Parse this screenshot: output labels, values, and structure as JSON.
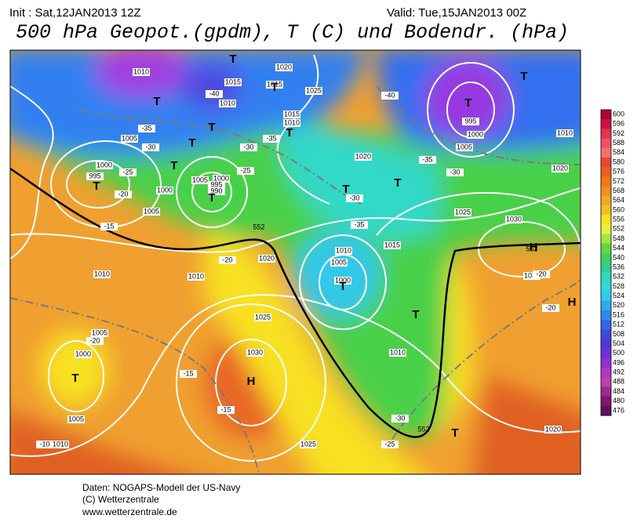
{
  "header": {
    "init": "Init : Sat,12JAN2013 12Z",
    "valid": "Valid: Tue,15JAN2013 00Z",
    "title": "500 hPa Geopot.(gpdm), T (C) und Bodendr. (hPa)"
  },
  "legend": {
    "levels": [
      600,
      596,
      592,
      588,
      584,
      580,
      576,
      572,
      568,
      564,
      560,
      556,
      552,
      548,
      544,
      540,
      536,
      532,
      528,
      524,
      520,
      516,
      512,
      508,
      504,
      500,
      496,
      492,
      488,
      484,
      480,
      476
    ],
    "colors": [
      "#b00030",
      "#d01040",
      "#e83050",
      "#f05060",
      "#f07070",
      "#e84830",
      "#e86020",
      "#f07818",
      "#f09020",
      "#f0a828",
      "#f0c020",
      "#f8e020",
      "#e8f040",
      "#a0e840",
      "#60d840",
      "#40d060",
      "#30d090",
      "#30d8b8",
      "#30d8d8",
      "#30c8f0",
      "#30a8f0",
      "#3088f0",
      "#3068e8",
      "#4048e0",
      "#5038d8",
      "#7030d8",
      "#9030d0",
      "#b038c8",
      "#c040b0",
      "#a02890",
      "#801870",
      "#601060"
    ]
  },
  "map": {
    "pressure_labels": [
      "1010",
      "1015",
      "1010",
      "1015",
      "1020",
      "1025",
      "1015",
      "1010",
      "1005",
      "1000",
      "995",
      "1000",
      "1005",
      "1005",
      "1000",
      "995",
      "990",
      "1020",
      "1025",
      "1030",
      "1015",
      "1010",
      "1005",
      "1000",
      "1010",
      "1010",
      "1020",
      "1025",
      "1030",
      "1005",
      "1000",
      "1005",
      "1010",
      "1025",
      "1010",
      "1020",
      "1030",
      "1010",
      "1020",
      "995",
      "1000",
      "1005"
    ],
    "temperature_labels": [
      "-40",
      "-40",
      "-35",
      "-30",
      "-25",
      "-20",
      "-15",
      "-30",
      "-25",
      "-35",
      "-30",
      "-35",
      "-20",
      "-35",
      "-30",
      "-20",
      "-20",
      "-20",
      "-15",
      "-15",
      "-30",
      "-25",
      "-10"
    ],
    "centers": [
      "T",
      "T",
      "T",
      "T",
      "T",
      "T",
      "T",
      "T",
      "T",
      "T",
      "T",
      "T",
      "T",
      "H",
      "H",
      "T",
      "T",
      "T",
      "H",
      "T"
    ],
    "contour_labels": [
      "552",
      "552",
      "552"
    ]
  },
  "footer": {
    "lines": [
      "Daten: NOGAPS-Modell der US-Navy",
      "(C) Wetterzentrale",
      "www.wetterzentrale.de"
    ]
  }
}
